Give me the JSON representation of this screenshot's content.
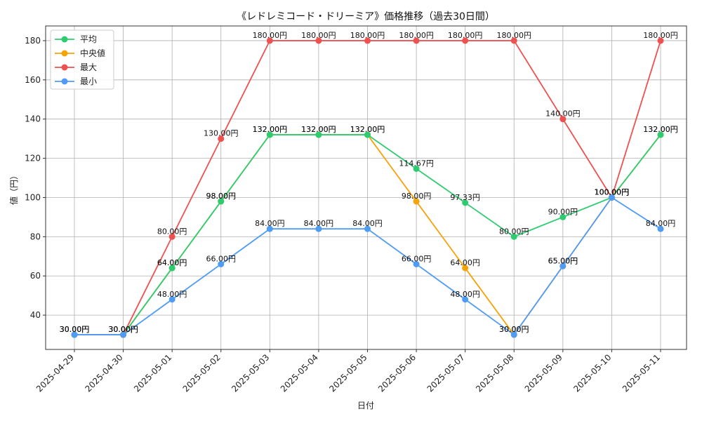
{
  "chart_data": {
    "type": "line",
    "title": "《レドレミコード・ドリーミア》価格推移（過去30日間）",
    "xlabel": "日付",
    "ylabel": "値（円）",
    "categories": [
      "2025-04-29",
      "2025-04-30",
      "2025-05-01",
      "2025-05-02",
      "2025-05-03",
      "2025-05-04",
      "2025-05-05",
      "2025-05-06",
      "2025-05-07",
      "2025-05-08",
      "2025-05-09",
      "2025-05-10",
      "2025-05-11"
    ],
    "ylim": [
      22.5,
      187.5
    ],
    "yticks": [
      40,
      60,
      80,
      100,
      120,
      140,
      160,
      180
    ],
    "grid": true,
    "legend_position": "top-left",
    "series": [
      {
        "name": "平均",
        "color": "#2ecc71",
        "values": [
          30,
          30,
          64,
          98,
          132,
          132,
          132,
          114.67,
          97.33,
          80,
          90,
          100,
          132
        ]
      },
      {
        "name": "中央値",
        "color": "#f5a30a",
        "values": [
          30,
          30,
          64,
          98,
          132,
          132,
          132,
          98,
          64,
          30,
          65,
          100,
          132
        ]
      },
      {
        "name": "最大",
        "color": "#f05050",
        "values": [
          30,
          30,
          80,
          130,
          180,
          180,
          180,
          180,
          180,
          180,
          140,
          100,
          180
        ]
      },
      {
        "name": "最小",
        "color": "#4f9cf5",
        "values": [
          30,
          30,
          48,
          66,
          84,
          84,
          84,
          66,
          48,
          30,
          65,
          100,
          84
        ]
      }
    ],
    "value_suffix": "円"
  }
}
